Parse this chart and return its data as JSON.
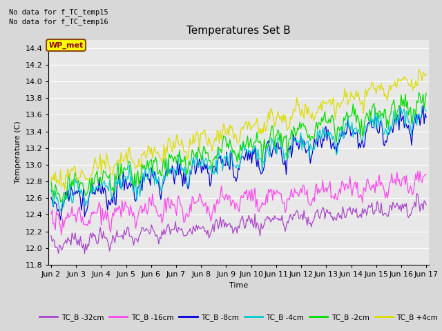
{
  "title": "Temperatures Set B",
  "ylabel": "Temperature (C)",
  "xlabel": "Time",
  "annotation_lines": [
    "No data for f_TC_temp15",
    "No data for f_TC_temp16"
  ],
  "wp_met_label": "WP_met",
  "wp_met_box_color": "#ffff00",
  "wp_met_text_color": "#8b0000",
  "background_color": "#e8e8e8",
  "ylim": [
    11.8,
    14.5
  ],
  "yticks": [
    11.8,
    12.0,
    12.2,
    12.4,
    12.6,
    12.8,
    13.0,
    13.2,
    13.4,
    13.6,
    13.8,
    14.0,
    14.2,
    14.4
  ],
  "series": [
    {
      "label": "TC_B -32cm",
      "color": "#aa44cc"
    },
    {
      "label": "TC_B -16cm",
      "color": "#ff44ee"
    },
    {
      "label": "TC_B -8cm",
      "color": "#0000dd"
    },
    {
      "label": "TC_B -4cm",
      "color": "#00cccc"
    },
    {
      "label": "TC_B -2cm",
      "color": "#00dd00"
    },
    {
      "label": "TC_B +4cm",
      "color": "#dddd00"
    }
  ],
  "x_tick_labels": [
    "Jun 2",
    "Jun 3",
    "Jun 4",
    "Jun 5",
    "Jun 6",
    "Jun 7",
    "Jun 8",
    "Jun 9",
    "Jun 10",
    "Jun 11",
    "Jun 12",
    "Jun 13",
    "Jun 14",
    "Jun 15",
    "Jun 16",
    "Jun 17"
  ],
  "n_per_day": 24,
  "n_days": 15,
  "seed": 7
}
